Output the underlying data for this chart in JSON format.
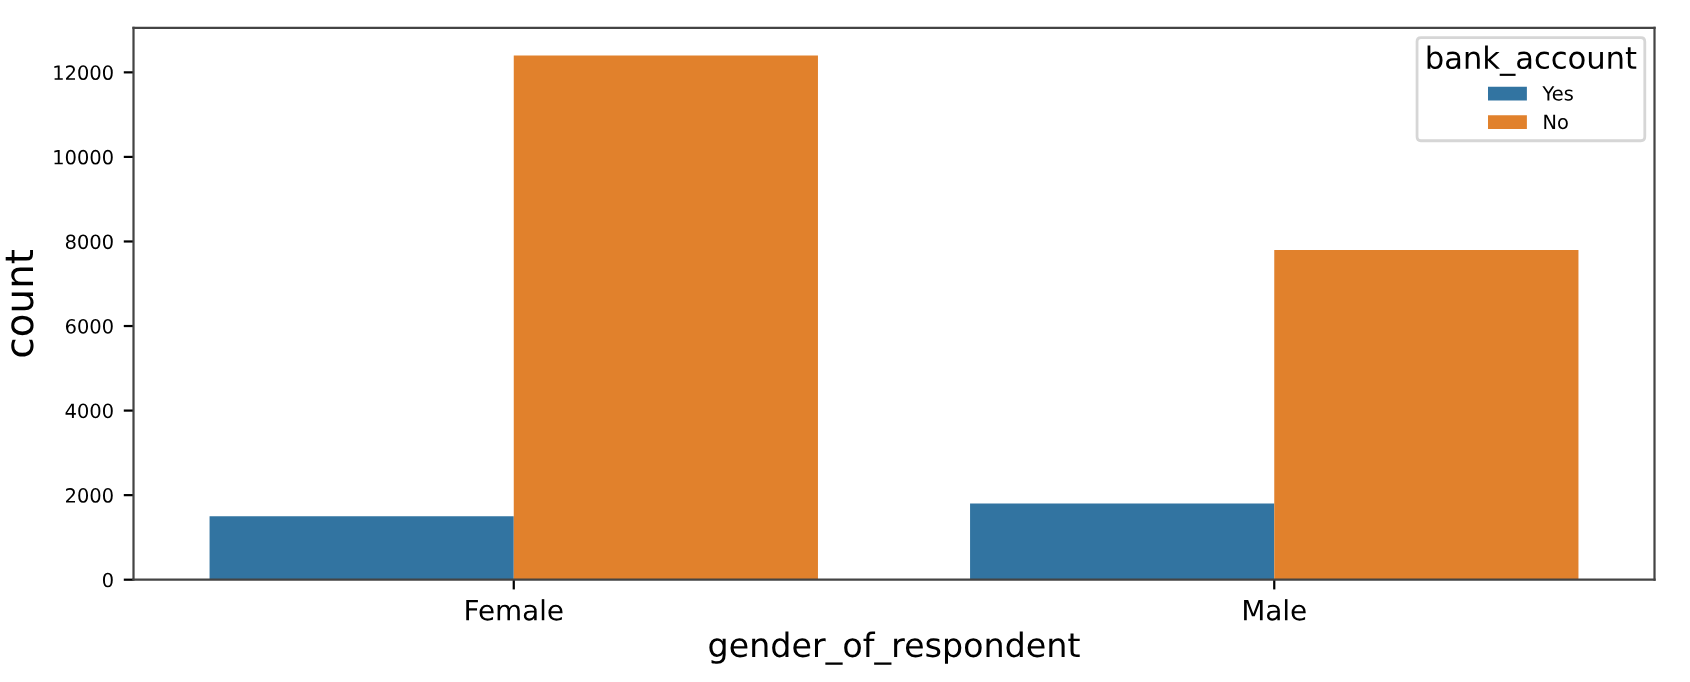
{
  "chart_data": {
    "type": "bar",
    "xlabel": "gender_of_respondent",
    "ylabel": "count",
    "legend_title": "bank_account",
    "categories": [
      "Female",
      "Male"
    ],
    "series": [
      {
        "name": "Yes",
        "color": "#3274a1",
        "values": [
          1500,
          1800
        ]
      },
      {
        "name": "No",
        "color": "#e1812c",
        "values": [
          12400,
          7800
        ]
      }
    ],
    "ylim": [
      0,
      13050
    ],
    "yticks": [
      0,
      2000,
      4000,
      6000,
      8000,
      10000,
      12000
    ],
    "grid": false,
    "legend": "top right"
  }
}
